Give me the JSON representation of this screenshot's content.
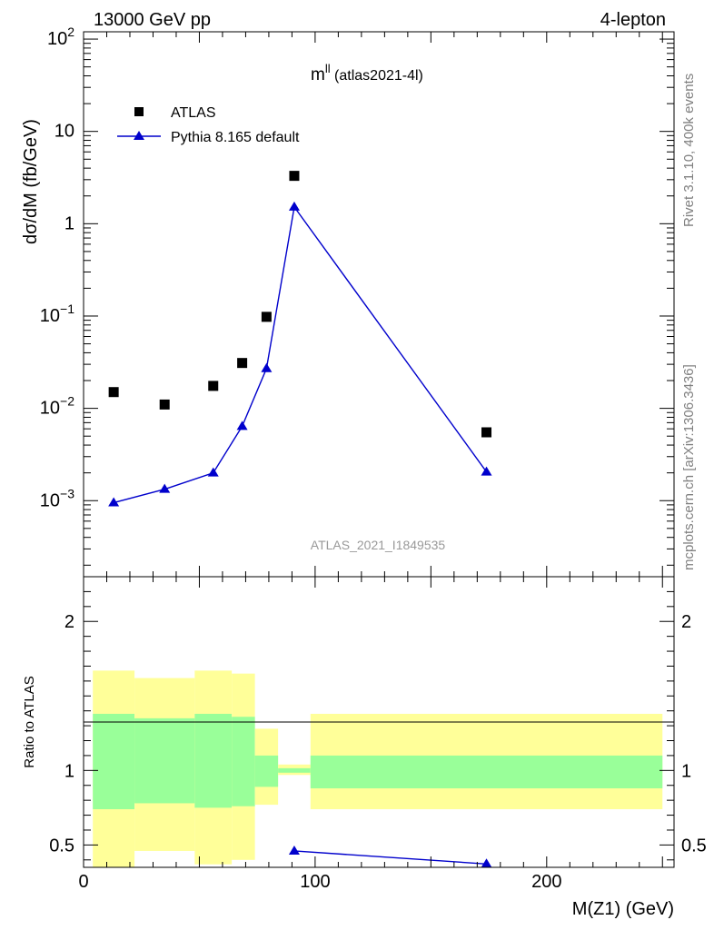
{
  "header": {
    "left": "13000 GeV pp",
    "right": "4-lepton"
  },
  "side": {
    "rivet": "Rivet 3.1.10,  400k events",
    "mcplots": "mcplots.cern.ch [arXiv:1306.3436]"
  },
  "chart_data": {
    "type": "scatter",
    "title_main": "m",
    "title_sup": "ll",
    "title_sub": " (atlas2021-4l)",
    "watermark": "ATLAS_2021_I1849535",
    "ylabel": "dσ/dM (fb/GeV)",
    "xlabel": "M(Z1) (GeV)",
    "ratio_ylabel": "Ratio to ATLAS",
    "xlim": [
      0,
      255
    ],
    "ylim_log": [
      0.00015,
      120
    ],
    "ratio_ylim": [
      0.35,
      2.3
    ],
    "x_ticks": [
      {
        "v": 0,
        "label": "0"
      },
      {
        "v": 100,
        "label": "100"
      },
      {
        "v": 200,
        "label": "200"
      }
    ],
    "y_ticks": [
      {
        "v": 0.001,
        "base": "10",
        "exp": "−3"
      },
      {
        "v": 0.01,
        "base": "10",
        "exp": "−2"
      },
      {
        "v": 0.1,
        "base": "10",
        "exp": "−1"
      },
      {
        "v": 1,
        "base": "1",
        "exp": ""
      },
      {
        "v": 10,
        "base": "10",
        "exp": ""
      },
      {
        "v": 100,
        "base": "10",
        "exp": "2"
      }
    ],
    "ratio_ticks": [
      {
        "v": 0.5,
        "label": "0.5"
      },
      {
        "v": 1,
        "label": "1"
      },
      {
        "v": 2,
        "label": "2"
      }
    ],
    "legend": {
      "data_label": "ATLAS",
      "mc_label": "Pythia 8.165 default"
    },
    "data_points": [
      {
        "x": 13,
        "y": 0.015
      },
      {
        "x": 35,
        "y": 0.011
      },
      {
        "x": 56,
        "y": 0.0175
      },
      {
        "x": 68.5,
        "y": 0.031
      },
      {
        "x": 79,
        "y": 0.098
      },
      {
        "x": 91,
        "y": 3.3
      },
      {
        "x": 174,
        "y": 0.0055
      }
    ],
    "mc_points": [
      {
        "x": 13,
        "y": 0.00095
      },
      {
        "x": 35,
        "y": 0.00133
      },
      {
        "x": 56,
        "y": 0.002
      },
      {
        "x": 68.5,
        "y": 0.0064
      },
      {
        "x": 79,
        "y": 0.027
      },
      {
        "x": 91,
        "y": 1.52
      },
      {
        "x": 174,
        "y": 0.00205
      }
    ],
    "bands": [
      {
        "x0": 4,
        "x1": 22,
        "stat": [
          0.74,
          1.38
        ],
        "total": [
          0.2,
          1.67
        ]
      },
      {
        "x0": 22,
        "x1": 48,
        "stat": [
          0.78,
          1.35
        ],
        "total": [
          0.46,
          1.62
        ]
      },
      {
        "x0": 48,
        "x1": 64,
        "stat": [
          0.75,
          1.38
        ],
        "total": [
          0.37,
          1.67
        ]
      },
      {
        "x0": 64,
        "x1": 74,
        "stat": [
          0.76,
          1.36
        ],
        "total": [
          0.4,
          1.65
        ]
      },
      {
        "x0": 74,
        "x1": 84,
        "stat": [
          0.89,
          1.1
        ],
        "total": [
          0.77,
          1.28
        ]
      },
      {
        "x0": 84,
        "x1": 98,
        "stat": [
          0.985,
          1.015
        ],
        "total": [
          0.97,
          1.04
        ]
      },
      {
        "x0": 98,
        "x1": 250,
        "stat": [
          0.88,
          1.1
        ],
        "total": [
          0.74,
          1.38
        ]
      }
    ],
    "ratio_mc": [
      {
        "x": 91,
        "y": 0.46
      },
      {
        "x": 174,
        "y": 0.3727
      }
    ]
  }
}
